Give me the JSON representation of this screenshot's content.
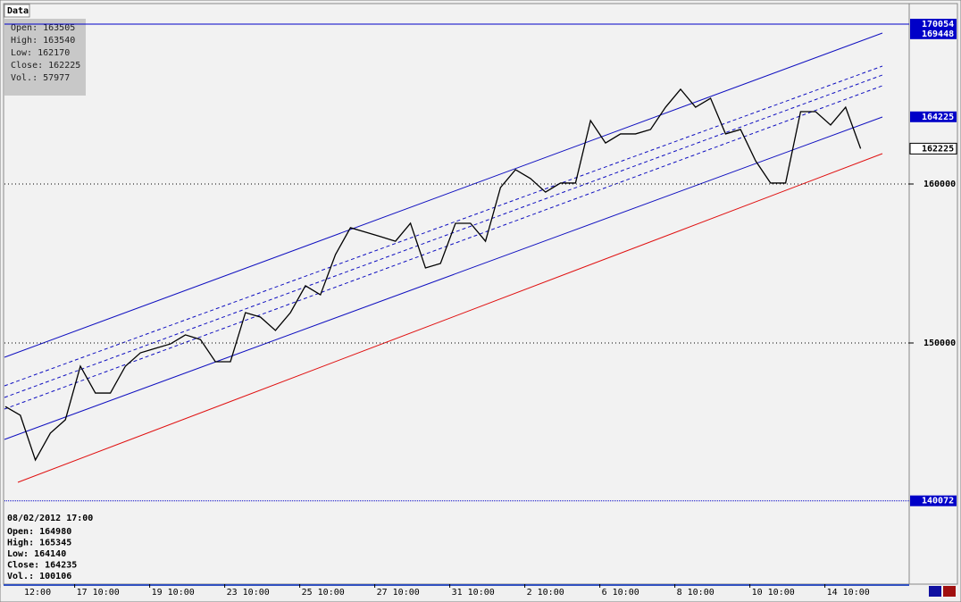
{
  "header": {
    "title": "Data"
  },
  "info_box": [
    "Open: 163505",
    "High: 163540",
    "Low: 162170",
    "Close: 162225",
    "Vol.: 57977"
  ],
  "cursor_box": {
    "time": "08/02/2012 17:00",
    "lines": [
      "Open: 164980",
      "High: 165345",
      "Low: 164140",
      "Close: 164235",
      "Vol.: 100106"
    ]
  },
  "chart_data": {
    "type": "line",
    "categories": [
      null,
      null,
      "12:00",
      null,
      null,
      null,
      null,
      "17 10:00",
      null,
      null,
      null,
      null,
      "19 10:00",
      null,
      null,
      null,
      null,
      "23 10:00",
      null,
      null,
      null,
      null,
      "25 10:00",
      null,
      null,
      null,
      null,
      "27 10:00",
      null,
      null,
      null,
      null,
      "31 10:00",
      null,
      null,
      null,
      null,
      "2 10:00",
      null,
      null,
      null,
      null,
      "6 10:00",
      null,
      null,
      null,
      null,
      "8 10:00",
      null,
      null,
      null,
      null,
      "10 10:00",
      null,
      null,
      null,
      null,
      "14 10:00"
    ],
    "series": [
      {
        "color": "#000000",
        "values": [
          146000,
          145450,
          142640,
          144330,
          145170,
          148540,
          146850,
          146850,
          148540,
          149380,
          149660,
          149940,
          150510,
          150220,
          148820,
          148820,
          151910,
          151630,
          150790,
          151910,
          153600,
          153030,
          155560,
          157250,
          156970,
          156690,
          156400,
          157530,
          154720,
          155000,
          157530,
          157530,
          156400,
          159780,
          160900,
          160340,
          159490,
          160060,
          160060,
          163990,
          162580,
          163150,
          163150,
          163430,
          164830,
          165960,
          164830,
          165390,
          163150,
          163430,
          161460,
          160060,
          160060,
          164550,
          164550,
          163710,
          164830,
          162225
        ]
      }
    ],
    "ylim": [
      134775,
      171573
    ],
    "yticks": [
      150000,
      160000
    ],
    "grid": true,
    "price_levels": [
      {
        "value": 170054,
        "color": "#0000c8",
        "line": "solid"
      },
      {
        "value": 169448,
        "color": "#0000c8",
        "line": "none"
      },
      {
        "value": 164225,
        "color": "#0000c8",
        "line": "none"
      },
      {
        "value": 162225,
        "color": "#ffffff",
        "line": "none"
      },
      {
        "value": 140072,
        "color": "#0000c8",
        "line": "dotted"
      }
    ]
  }
}
